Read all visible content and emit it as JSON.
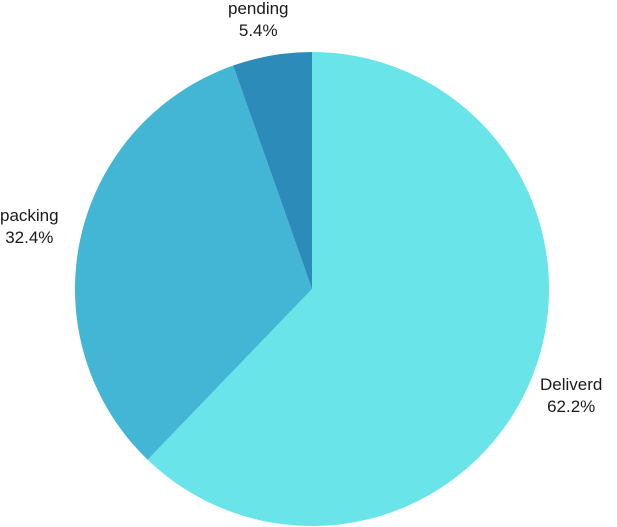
{
  "chart_data": {
    "type": "pie",
    "title": "",
    "slices": [
      {
        "label": "Deliverd",
        "value": 62.2,
        "value_label": "62.2%",
        "color": "#69E4E8"
      },
      {
        "label": "packing",
        "value": 32.4,
        "value_label": "32.4%",
        "color": "#42B6D4"
      },
      {
        "label": "pending",
        "value": 5.4,
        "value_label": "5.4%",
        "color": "#2D8BBA"
      }
    ],
    "start": "12 o'clock",
    "direction": "clockwise",
    "legend": "none"
  }
}
